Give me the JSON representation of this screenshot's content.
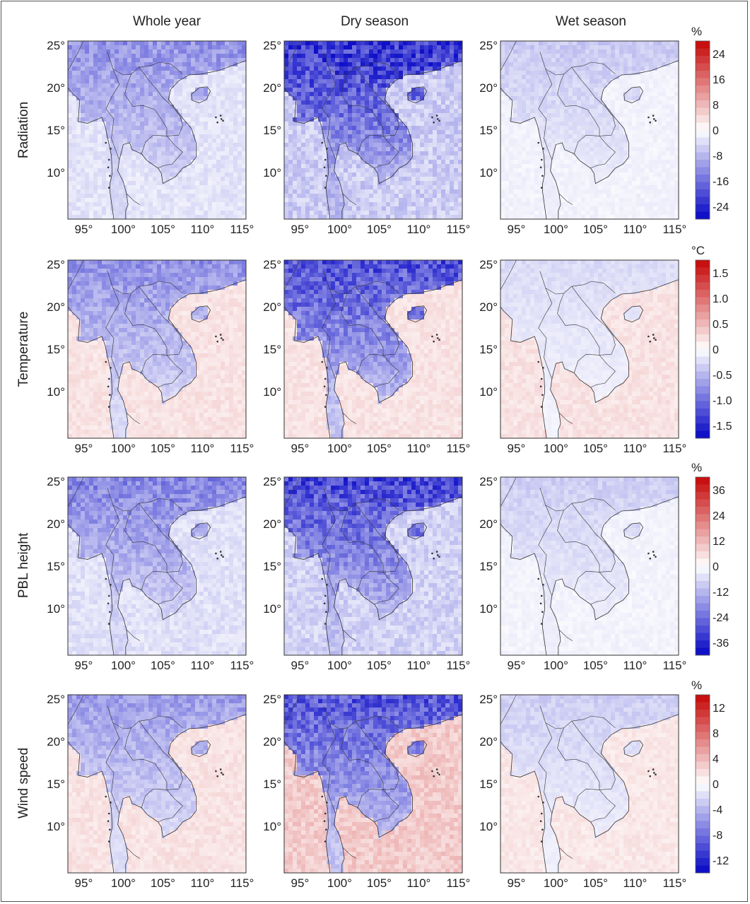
{
  "columns": [
    "Whole year",
    "Dry season",
    "Wet season"
  ],
  "rows": [
    {
      "label": "Radiation",
      "unit": "%",
      "colorbar_ticks": [
        "24",
        "16",
        "8",
        "0",
        "-8",
        "-16",
        "-24"
      ],
      "intensity": [
        0.45,
        0.85,
        0.22
      ],
      "ocean_positive": [
        0.0,
        0.0,
        0.0
      ]
    },
    {
      "label": "Temperature",
      "unit": "°C",
      "colorbar_ticks": [
        "1.5",
        "1.0",
        "0.5",
        "0",
        "-0.5",
        "-1.0",
        "-1.5"
      ],
      "intensity": [
        0.45,
        0.72,
        0.15
      ],
      "ocean_positive": [
        0.12,
        0.12,
        0.12
      ]
    },
    {
      "label": "PBL height",
      "unit": "%",
      "colorbar_ticks": [
        "36",
        "24",
        "12",
        "0",
        "-12",
        "-24",
        "-36"
      ],
      "intensity": [
        0.5,
        0.75,
        0.2
      ],
      "ocean_positive": [
        0.0,
        0.0,
        0.0
      ]
    },
    {
      "label": "Wind speed",
      "unit": "%",
      "colorbar_ticks": [
        "12",
        "8",
        "4",
        "0",
        "-4",
        "-8",
        "-12"
      ],
      "intensity": [
        0.4,
        0.7,
        0.2
      ],
      "ocean_positive": [
        0.12,
        0.22,
        0.1
      ]
    }
  ],
  "lat_ticks": [
    "25°",
    "20°",
    "15°",
    "10°"
  ],
  "lon_ticks": [
    "95°",
    "100°",
    "105°",
    "110°",
    "115°"
  ],
  "colors": {
    "negative_max": "#1010c8",
    "positive_max": "#c81010",
    "neutral": "#ffffff",
    "land_outline": "#333333"
  }
}
